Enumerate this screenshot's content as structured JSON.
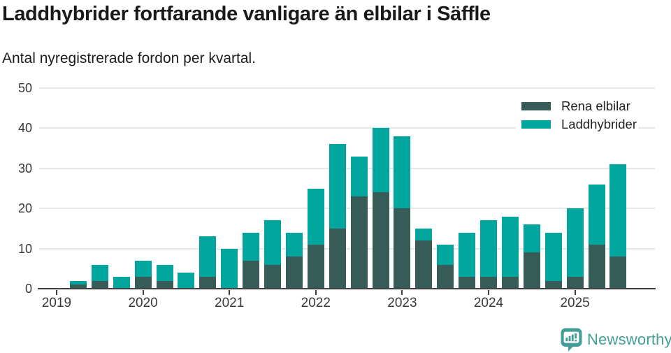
{
  "header": {
    "title": "Laddhybrider fortfarande vanligare än elbilar i Säffle",
    "subtitle": "Antal nyregistrerade fordon per kvartal."
  },
  "colors": {
    "electric_bar": "#375b57",
    "hybrid_bar": "#00a69e",
    "gridline": "#e7e7e7",
    "axis": "#404040",
    "tick_label": "#3a3a3a",
    "title_text": "#1a1a1a",
    "brand": "#429e97"
  },
  "chart_data": {
    "type": "bar",
    "stacked": true,
    "title": "Laddhybrider fortfarande vanligare än elbilar i Säffle",
    "subtitle": "Antal nyregistrerade fordon per kvartal.",
    "x": [
      "2019-Q1",
      "2019-Q2",
      "2019-Q3",
      "2019-Q4",
      "2020-Q1",
      "2020-Q2",
      "2020-Q3",
      "2020-Q4",
      "2021-Q1",
      "2021-Q2",
      "2021-Q3",
      "2021-Q4",
      "2022-Q1",
      "2022-Q2",
      "2022-Q3",
      "2022-Q4",
      "2023-Q1",
      "2023-Q2",
      "2023-Q3",
      "2023-Q4",
      "2024-Q1",
      "2024-Q2",
      "2024-Q3",
      "2024-Q4",
      "2025-Q1",
      "2025-Q2",
      "2025-Q3"
    ],
    "series": [
      {
        "name": "Rena elbilar",
        "color": "#375b57",
        "values": [
          0,
          1,
          2,
          0,
          3,
          2,
          0,
          3,
          0,
          7,
          6,
          8,
          11,
          15,
          23,
          24,
          20,
          12,
          6,
          3,
          3,
          3,
          9,
          2,
          3,
          11,
          8
        ]
      },
      {
        "name": "Laddhybrider",
        "color": "#00a69e",
        "values": [
          0,
          1,
          4,
          3,
          4,
          4,
          4,
          10,
          10,
          7,
          11,
          6,
          14,
          21,
          10,
          16,
          18,
          3,
          5,
          11,
          14,
          15,
          7,
          12,
          17,
          15,
          23
        ]
      }
    ],
    "totals": [
      0,
      2,
      6,
      3,
      7,
      6,
      4,
      13,
      10,
      14,
      17,
      14,
      25,
      36,
      33,
      40,
      38,
      15,
      11,
      14,
      17,
      18,
      16,
      14,
      20,
      26,
      31
    ],
    "x_tick_labels": [
      "2019",
      "2020",
      "2021",
      "2022",
      "2023",
      "2024",
      "2025"
    ],
    "tick_every": 4,
    "ylim": [
      0,
      50
    ],
    "yticks": [
      0,
      10,
      20,
      30,
      40,
      50
    ],
    "grid": "horizontal",
    "legend_position": "top-right"
  },
  "footer": {
    "brand": "Newsworthy",
    "logo_icon": "bar-chart-speech-bubble"
  }
}
